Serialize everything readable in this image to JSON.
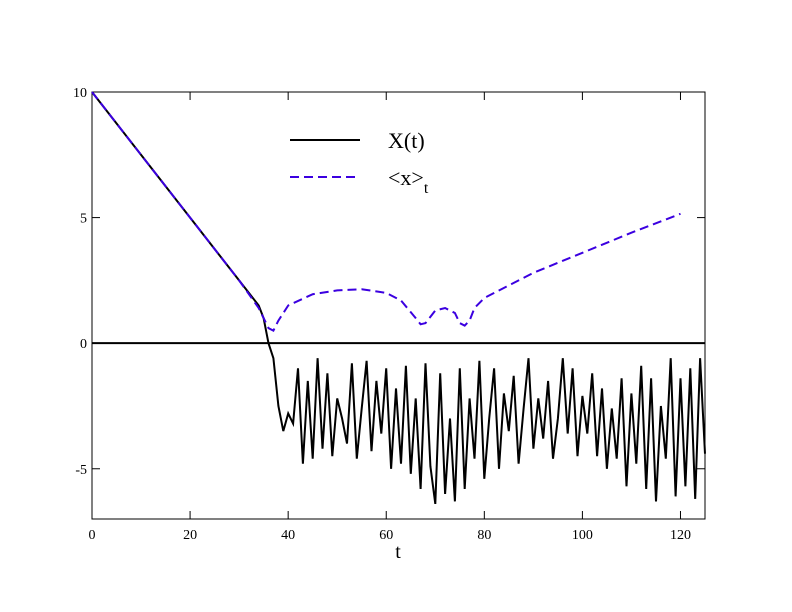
{
  "chart_data": {
    "type": "line",
    "xlabel": "t",
    "xlim": [
      0,
      125
    ],
    "ylim": [
      -7,
      10
    ],
    "xticks": [
      0,
      20,
      40,
      60,
      80,
      100,
      120
    ],
    "yticks": [
      -5,
      0,
      5,
      10
    ],
    "hline": 0,
    "series": [
      {
        "name": "X(t)",
        "color": "#000000",
        "dash": false,
        "x": [
          0,
          10,
          20,
          30,
          34,
          35,
          36,
          37,
          38,
          39,
          40,
          41,
          42,
          43,
          44,
          45,
          46,
          47,
          48,
          49,
          50,
          51,
          52,
          53,
          54,
          55,
          56,
          57,
          58,
          59,
          60,
          61,
          62,
          63,
          64,
          65,
          66,
          67,
          68,
          69,
          70,
          71,
          72,
          73,
          74,
          75,
          76,
          77,
          78,
          79,
          80,
          81,
          82,
          83,
          84,
          85,
          86,
          87,
          88,
          89,
          90,
          91,
          92,
          93,
          94,
          95,
          96,
          97,
          98,
          99,
          100,
          101,
          102,
          103,
          104,
          105,
          106,
          107,
          108,
          109,
          110,
          111,
          112,
          113,
          114,
          115,
          116,
          117,
          118,
          119,
          120,
          121,
          122,
          123,
          124,
          125
        ],
        "values": [
          10,
          7.5,
          5,
          2.5,
          1.5,
          1.0,
          0,
          -0.6,
          -2.5,
          -3.5,
          -2.8,
          -3.2,
          -1.0,
          -4.8,
          -1.5,
          -4.6,
          -0.6,
          -4.2,
          -1.2,
          -4.5,
          -2.2,
          -3.0,
          -4.0,
          -0.8,
          -4.6,
          -2.6,
          -0.7,
          -4.3,
          -1.5,
          -3.6,
          -1.0,
          -5.0,
          -1.8,
          -4.8,
          -0.9,
          -5.2,
          -2.2,
          -5.8,
          -0.8,
          -4.9,
          -6.4,
          -1.2,
          -6.0,
          -3.0,
          -6.3,
          -1.0,
          -5.8,
          -2.2,
          -4.6,
          -0.7,
          -5.4,
          -3.0,
          -1.0,
          -5.0,
          -2.0,
          -3.5,
          -1.3,
          -4.8,
          -2.6,
          -0.6,
          -4.2,
          -2.2,
          -3.8,
          -1.5,
          -4.6,
          -3.0,
          -0.6,
          -3.6,
          -1.0,
          -4.5,
          -2.1,
          -3.6,
          -1.2,
          -4.5,
          -1.8,
          -5.0,
          -2.6,
          -4.6,
          -1.4,
          -5.7,
          -2.0,
          -4.8,
          -0.9,
          -5.8,
          -1.4,
          -6.3,
          -2.5,
          -4.6,
          -0.6,
          -6.1,
          -1.4,
          -5.7,
          -1.0,
          -6.2,
          -0.6,
          -4.4
        ]
      },
      {
        "name": "<x>t",
        "color": "#3b00e0",
        "dash": true,
        "x": [
          0,
          10,
          20,
          30,
          34,
          36,
          37,
          38,
          40,
          45,
          50,
          55,
          60,
          63,
          66,
          67,
          68,
          70,
          72,
          74,
          75,
          76,
          77,
          78,
          80,
          85,
          90,
          100,
          110,
          120
        ],
        "values": [
          10,
          7.5,
          5,
          2.5,
          1.4,
          0.6,
          0.5,
          0.9,
          1.5,
          1.95,
          2.1,
          2.15,
          2.0,
          1.7,
          1.0,
          0.75,
          0.8,
          1.3,
          1.4,
          1.2,
          0.8,
          0.7,
          0.9,
          1.4,
          1.8,
          2.3,
          2.8,
          3.6,
          4.4,
          5.15
        ]
      }
    ]
  }
}
